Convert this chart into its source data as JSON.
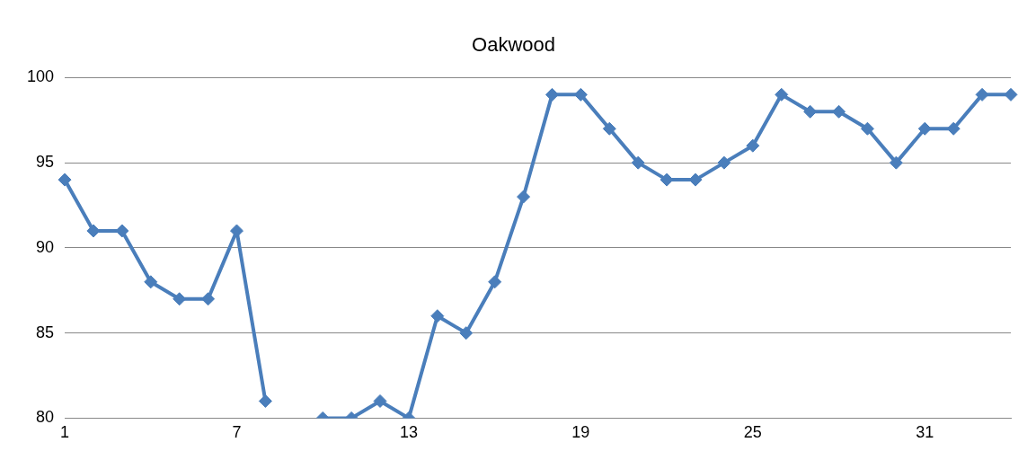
{
  "chart_data": {
    "type": "line",
    "title": "Oakwood",
    "categories": [
      "1",
      null,
      null,
      null,
      null,
      null,
      "7",
      null,
      null,
      null,
      null,
      null,
      "13",
      null,
      null,
      null,
      null,
      null,
      "19",
      null,
      null,
      null,
      null,
      null,
      "25",
      null,
      null,
      null,
      null,
      null,
      "31",
      null,
      null,
      null
    ],
    "series": [
      {
        "color": "#4a7ebb",
        "values": [
          94,
          91,
          91,
          88,
          87,
          87,
          91,
          81,
          null,
          80,
          80,
          81,
          80,
          86,
          85,
          88,
          93,
          99,
          99,
          97,
          95,
          94,
          94,
          95,
          96,
          99,
          98,
          98,
          97,
          95,
          97,
          97,
          99,
          99
        ]
      }
    ],
    "ylim": [
      80,
      100
    ],
    "yticks": [
      80,
      85,
      90,
      95,
      100
    ],
    "grid": "y",
    "legend": false,
    "marker": "diamond",
    "line_style": "solid"
  }
}
